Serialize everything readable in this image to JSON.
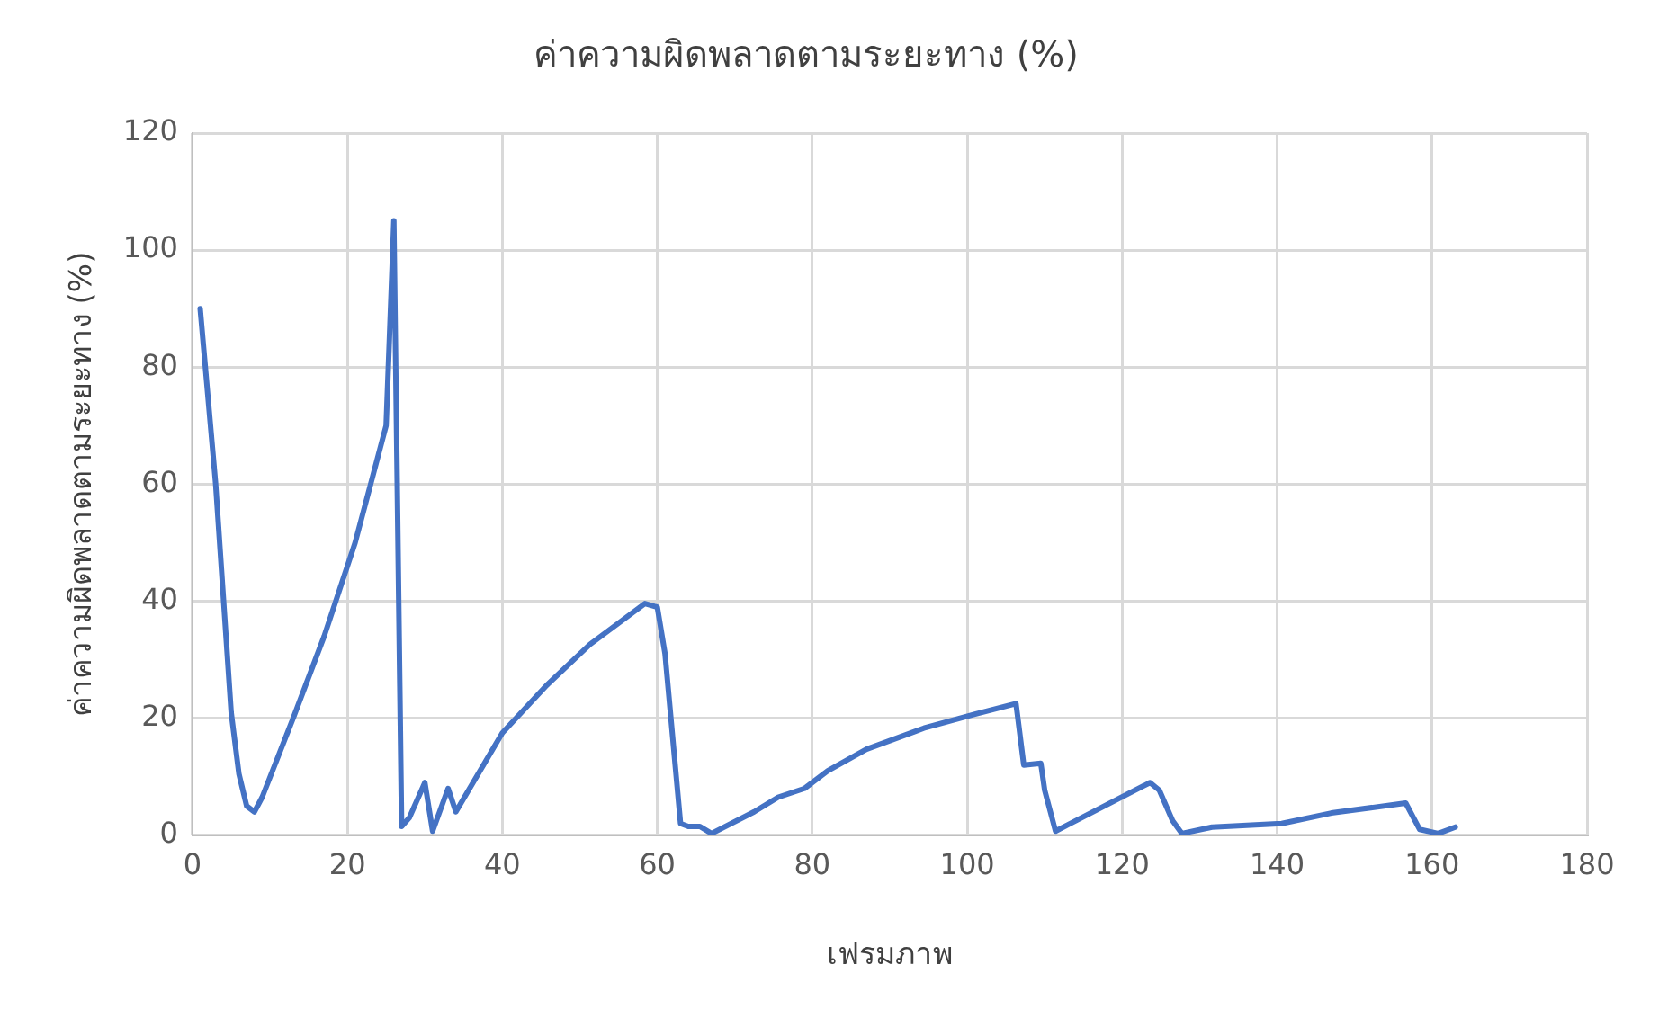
{
  "chart_data": {
    "type": "line",
    "title": "ค่าความผิดพลาดตามระยะทาง (%)",
    "xlabel": "เฟรมภาพ",
    "ylabel": "ค่าความผิดพลาดตามระยะทาง (%)",
    "xlim": [
      0,
      180
    ],
    "xticks": [
      0,
      20,
      40,
      60,
      80,
      100,
      120,
      140,
      160,
      180
    ],
    "ylim": [
      0,
      120
    ],
    "yticks": [
      0,
      20,
      40,
      60,
      80,
      100,
      120
    ],
    "grid": true,
    "legend": false,
    "marker": "none",
    "line_style": "solid",
    "series": [
      {
        "color": "#4472c4",
        "x": [
          1,
          3,
          5,
          6,
          7,
          8,
          9,
          13,
          17,
          21,
          23,
          25,
          26,
          27,
          28,
          30,
          31,
          33,
          34,
          40,
          45.7,
          51.3,
          58.4,
          60,
          61,
          63,
          64,
          65.5,
          67,
          72.5,
          75.6,
          79,
          82,
          87,
          94.4,
          101,
          106.3,
          107.3,
          109.5,
          110,
          111.4,
          113,
          123.6,
          124.8,
          126.5,
          127.7,
          131.6,
          140.6,
          147,
          156.6,
          158.4,
          160.8,
          163
        ],
        "values": [
          90,
          60,
          21,
          10.5,
          5,
          4,
          6.5,
          20,
          34,
          50,
          60,
          70,
          105,
          1.5,
          3,
          9,
          0.7,
          8,
          4,
          17.5,
          25.6,
          32.6,
          39.6,
          39,
          31,
          2,
          1.5,
          1.5,
          0.3,
          4,
          6.5,
          8,
          11,
          14.7,
          18.3,
          20.7,
          22.5,
          12,
          12.3,
          7.7,
          0.7,
          1.8,
          9,
          7.7,
          2.5,
          0.3,
          1.4,
          2,
          3.8,
          5.5,
          1,
          0.3,
          1.4
        ]
      }
    ]
  }
}
